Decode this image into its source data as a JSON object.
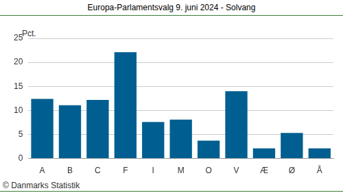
{
  "chart_data": {
    "type": "bar",
    "title": "Europa-Parlamentsvalg 9. juni 2024 - Solvang",
    "y_label": "Pct.",
    "annotations": [
      "© Danmarks Statistik"
    ],
    "categories": [
      "A",
      "B",
      "C",
      "F",
      "I",
      "M",
      "O",
      "V",
      "Æ",
      "Ø",
      "Å"
    ],
    "values": [
      12.4,
      11.1,
      12.2,
      22.1,
      7.6,
      8.1,
      3.7,
      14.0,
      2.1,
      5.3,
      2.1
    ],
    "color": "#005f90",
    "ylim": [
      0,
      25
    ],
    "yticks": [
      0,
      5,
      10,
      15,
      20,
      25
    ],
    "grid": true
  }
}
